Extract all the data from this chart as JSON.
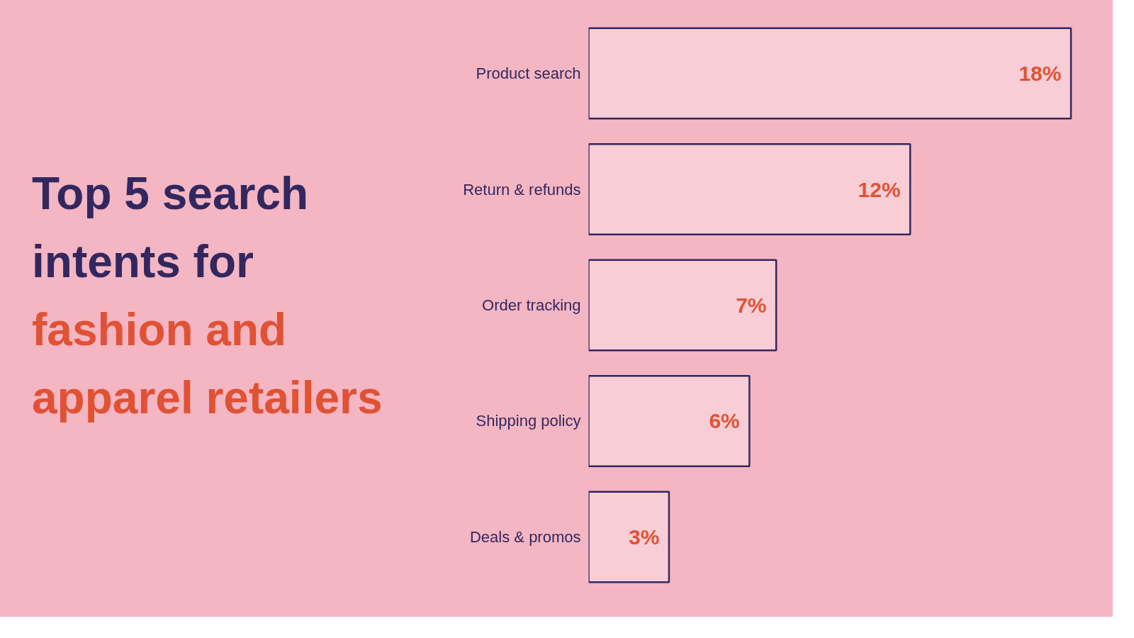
{
  "chart_data": {
    "type": "bar",
    "orientation": "horizontal",
    "title": "Top 5 search intents for",
    "subtitle": "fashion and apparel retailers",
    "categories": [
      "Product search",
      "Return & refunds",
      "Order tracking",
      "Shipping policy",
      "Deals & promos"
    ],
    "values": [
      18,
      12,
      7,
      6,
      3
    ],
    "value_labels": [
      "18%",
      "12%",
      "7%",
      "6%",
      "3%"
    ],
    "color": "#33275f",
    "grid": false,
    "tick_labels": "y"
  }
}
